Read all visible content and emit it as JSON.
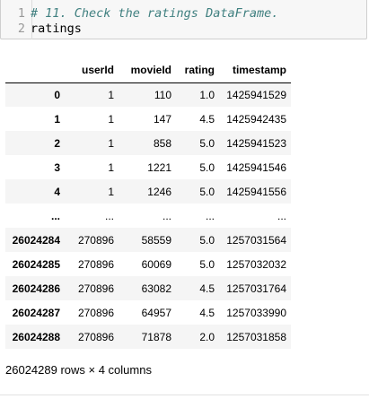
{
  "code_cell": {
    "lines": [
      {
        "number": "1",
        "text": "# 11. Check the ratings DataFrame."
      },
      {
        "number": "2",
        "text": "ratings"
      }
    ]
  },
  "dataframe": {
    "columns": [
      "userId",
      "movieId",
      "rating",
      "timestamp"
    ],
    "rows": [
      {
        "index": "0",
        "cells": [
          "1",
          "110",
          "1.0",
          "1425941529"
        ]
      },
      {
        "index": "1",
        "cells": [
          "1",
          "147",
          "4.5",
          "1425942435"
        ]
      },
      {
        "index": "2",
        "cells": [
          "1",
          "858",
          "5.0",
          "1425941523"
        ]
      },
      {
        "index": "3",
        "cells": [
          "1",
          "1221",
          "5.0",
          "1425941546"
        ]
      },
      {
        "index": "4",
        "cells": [
          "1",
          "1246",
          "5.0",
          "1425941556"
        ]
      },
      {
        "index": "...",
        "cells": [
          "...",
          "...",
          "...",
          "..."
        ]
      },
      {
        "index": "26024284",
        "cells": [
          "270896",
          "58559",
          "5.0",
          "1257031564"
        ]
      },
      {
        "index": "26024285",
        "cells": [
          "270896",
          "60069",
          "5.0",
          "1257032032"
        ]
      },
      {
        "index": "26024286",
        "cells": [
          "270896",
          "63082",
          "4.5",
          "1257031764"
        ]
      },
      {
        "index": "26024287",
        "cells": [
          "270896",
          "64957",
          "4.5",
          "1257033990"
        ]
      },
      {
        "index": "26024288",
        "cells": [
          "270896",
          "71878",
          "2.0",
          "1257031858"
        ]
      }
    ],
    "shape_text": "26024289 rows × 4 columns"
  }
}
